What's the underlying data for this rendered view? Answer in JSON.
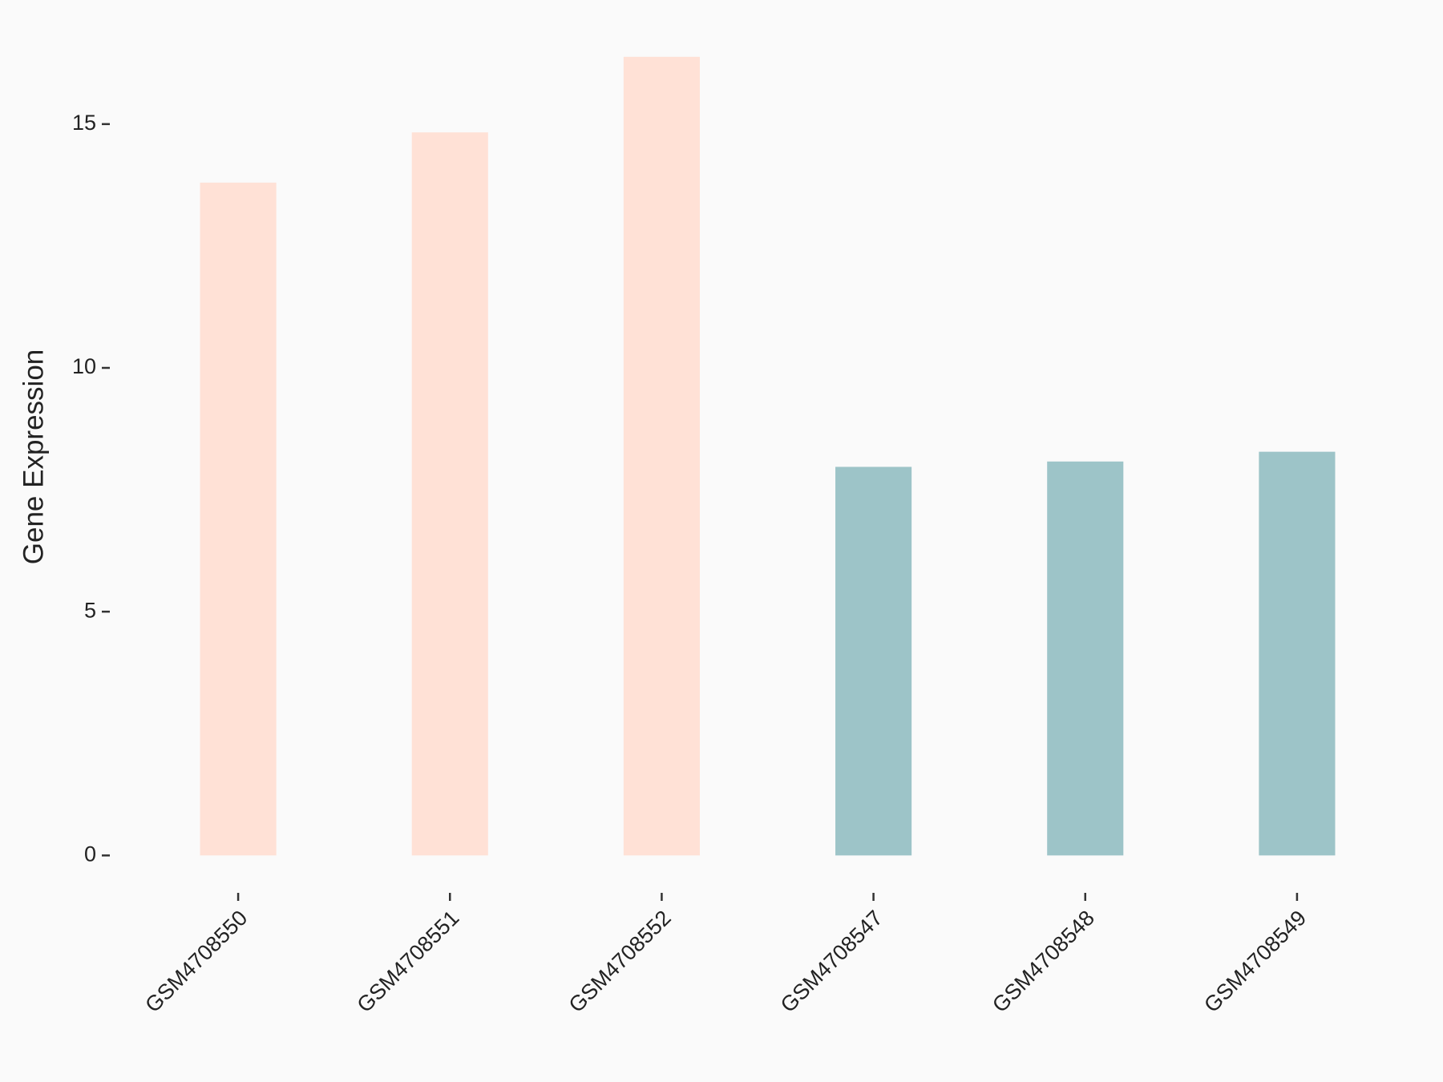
{
  "chart_data": {
    "type": "bar",
    "y_label": "Gene Expression",
    "categories": [
      "GSM4708550",
      "GSM4708551",
      "GSM4708552",
      "GSM4708547",
      "GSM4708548",
      "GSM4708549"
    ],
    "values": [
      13.8,
      14.83,
      16.38,
      7.97,
      8.08,
      8.28
    ],
    "colors": [
      "#ffe1d6",
      "#ffe1d6",
      "#ffe1d6",
      "#9dc4c8",
      "#9dc4c8",
      "#9dc4c8"
    ],
    "ylim": [
      -0.8,
      17.2
    ],
    "yticks": [
      0,
      5,
      10,
      15
    ]
  }
}
